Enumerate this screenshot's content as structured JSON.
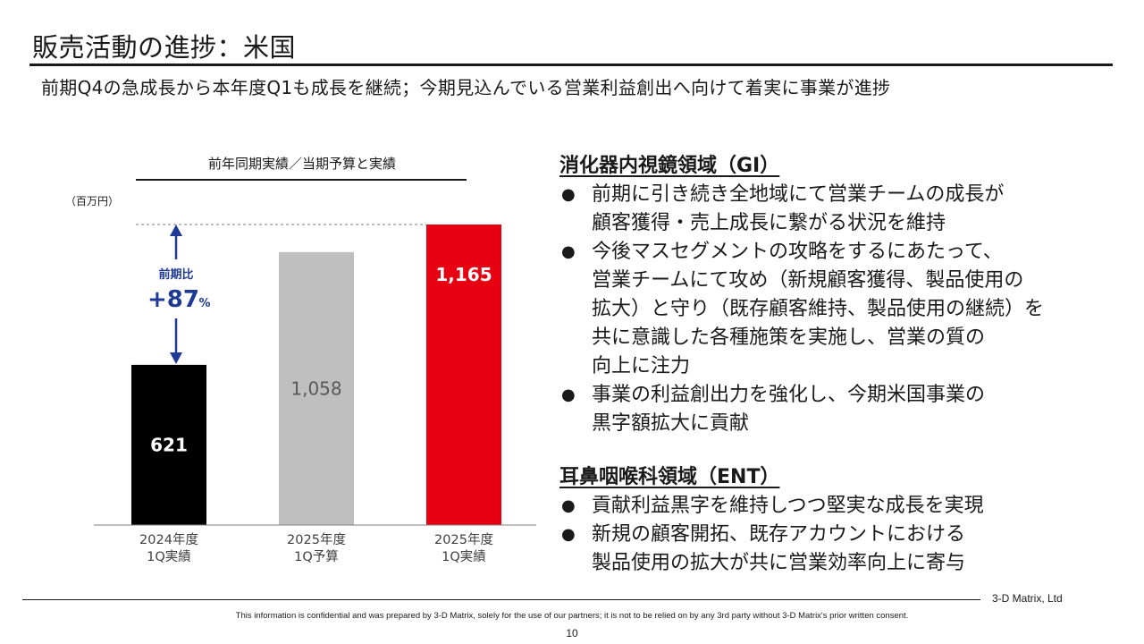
{
  "header": {
    "title": "販売活動の進捗：米国",
    "subtitle": "前期Q4の急成長から本年度Q1も成長を継続；今期見込んでいる営業利益創出へ向けて着実に事業が進捗"
  },
  "chart_data": {
    "type": "bar",
    "title": "前年同期実績／当期予算と実績",
    "unit_label": "（百万円）",
    "categories": [
      "2024年度\n1Q実績",
      "2025年度\n1Q予算",
      "2025年度\n1Q実績"
    ],
    "values": [
      621,
      1058,
      1165
    ],
    "value_labels": [
      "621",
      "1,058",
      "1,165"
    ],
    "bar_colors": [
      "#000000",
      "#bfbfbf",
      "#e60012"
    ],
    "label_colors": [
      "#ffffff",
      "#595959",
      "#ffffff"
    ],
    "ylim": [
      0,
      1165
    ],
    "annotation": {
      "label": "前期比",
      "value": "+87",
      "suffix": "%",
      "color": "#1f3a93"
    },
    "grid": false
  },
  "panel": {
    "section1": {
      "heading": "消化器内視鏡領域（GI）",
      "bullets": [
        "前期に引き続き全地域にて営業チームの成長が\n顧客獲得・売上成長に繋がる状況を維持",
        "今後マスセグメントの攻略をするにあたって、\n営業チームにて攻め（新規顧客獲得、製品使用の\n拡大）と守り（既存顧客維持、製品使用の継続）を\n共に意識した各種施策を実施し、営業の質の\n向上に注力",
        "事業の利益創出力を強化し、今期米国事業の\n黒字額拡大に貢献"
      ]
    },
    "section2": {
      "heading": "耳鼻咽喉科領域（ENT）",
      "bullets": [
        "貢献利益黒字を維持しつつ堅実な成長を実現",
        "新規の顧客開拓、既存アカウントにおける\n製品使用の拡大が共に営業効率向上に寄与"
      ]
    },
    "bullet_glyph": "●"
  },
  "footer": {
    "company": "3-D Matrix, Ltd",
    "disclaimer": "This information is confidential and was prepared by 3-D Matrix, solely for the use of our partners; it is not to be relied on by any 3rd party without 3-D Matrix's prior written consent.",
    "page": "10"
  }
}
